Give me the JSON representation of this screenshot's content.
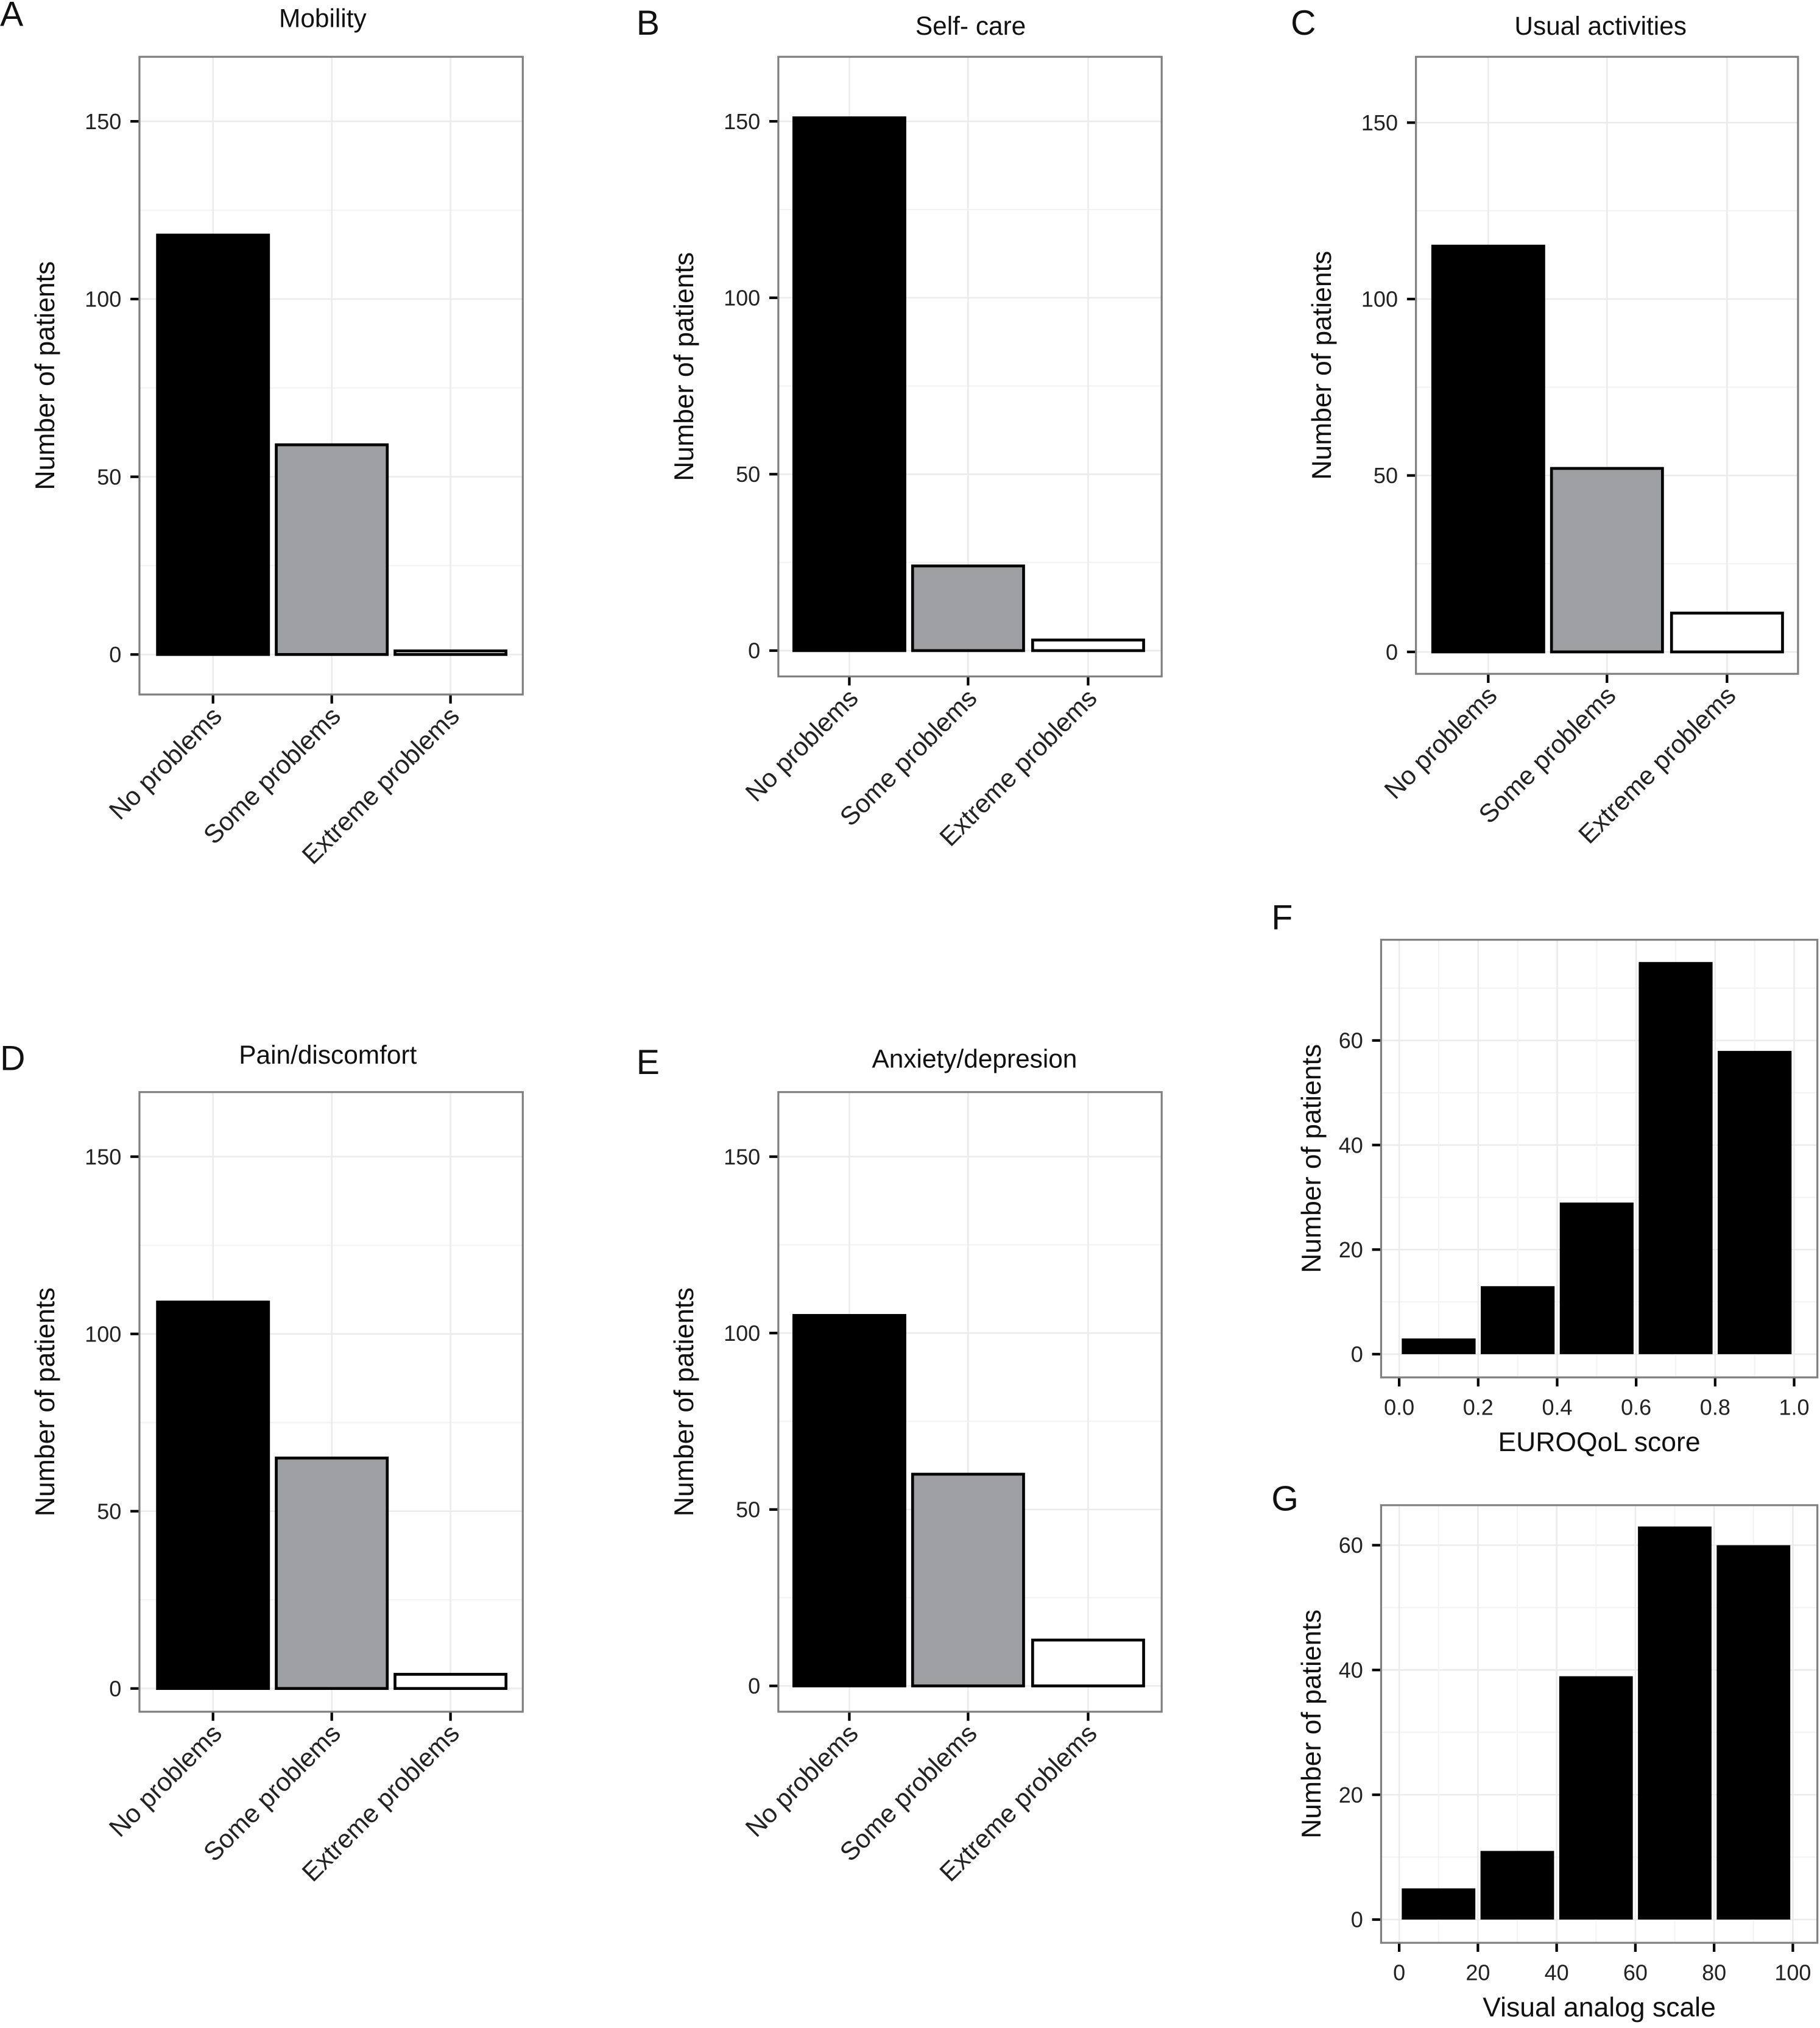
{
  "colors": {
    "no_problems": "#000000",
    "some_problems": "#9d9fa2",
    "extreme_problems": "#ffffff",
    "bar_stroke": "#000000",
    "grid": "#ebebeb",
    "panel_border": "#7f7f7f"
  },
  "chart_data": [
    {
      "id": "A",
      "letter": "A",
      "type": "bar",
      "title": "Mobility",
      "ylabel": "Number of patients",
      "xlabel": "",
      "categories": [
        "No problems",
        "Some problems",
        "Extreme problems"
      ],
      "values": [
        118,
        59,
        1
      ],
      "yticks": [
        0,
        50,
        100,
        150
      ],
      "grid": true
    },
    {
      "id": "B",
      "letter": "B",
      "type": "bar",
      "title": "Self- care",
      "ylabel": "Number of patients",
      "xlabel": "",
      "categories": [
        "No problems",
        "Some problems",
        "Extreme problems"
      ],
      "values": [
        151,
        24,
        3
      ],
      "yticks": [
        0,
        50,
        100,
        150
      ],
      "grid": true
    },
    {
      "id": "C",
      "letter": "C",
      "type": "bar",
      "title": "Usual activities",
      "ylabel": "Number of patients",
      "xlabel": "",
      "categories": [
        "No problems",
        "Some problems",
        "Extreme problems"
      ],
      "values": [
        115,
        52,
        11
      ],
      "yticks": [
        0,
        50,
        100,
        150
      ],
      "grid": true
    },
    {
      "id": "D",
      "letter": "D",
      "type": "bar",
      "title": "Pain/discomfort",
      "ylabel": "Number of patients",
      "xlabel": "",
      "categories": [
        "No problems",
        "Some problems",
        "Extreme problems"
      ],
      "values": [
        109,
        65,
        4
      ],
      "yticks": [
        0,
        50,
        100,
        150
      ],
      "grid": true
    },
    {
      "id": "E",
      "letter": "E",
      "type": "bar",
      "title": "Anxiety/depresion",
      "ylabel": "Number of patients",
      "xlabel": "",
      "categories": [
        "No problems",
        "Some problems",
        "Extreme problems"
      ],
      "values": [
        105,
        60,
        13
      ],
      "yticks": [
        0,
        50,
        100,
        150
      ],
      "grid": true
    },
    {
      "id": "F",
      "letter": "F",
      "type": "bar",
      "title": "",
      "ylabel": "Number of patients",
      "xlabel": "EUROQoL score",
      "bins": [
        [
          0.0,
          0.2
        ],
        [
          0.2,
          0.4
        ],
        [
          0.4,
          0.6
        ],
        [
          0.6,
          0.8
        ],
        [
          0.8,
          1.0
        ]
      ],
      "values": [
        3,
        13,
        29,
        75,
        58
      ],
      "xticks": [
        "0.0",
        "0.2",
        "0.4",
        "0.6",
        "0.8",
        "1.0"
      ],
      "yticks": [
        0,
        20,
        40,
        60
      ],
      "xlim": [
        0,
        1
      ],
      "grid": true
    },
    {
      "id": "G",
      "letter": "G",
      "type": "bar",
      "title": "",
      "ylabel": "Number of patients",
      "xlabel": "Visual analog scale",
      "bins": [
        [
          0,
          20
        ],
        [
          20,
          40
        ],
        [
          40,
          60
        ],
        [
          60,
          80
        ],
        [
          80,
          100
        ]
      ],
      "values": [
        5,
        11,
        39,
        63,
        60
      ],
      "xticks": [
        "0",
        "20",
        "40",
        "60",
        "80",
        "100"
      ],
      "yticks": [
        0,
        20,
        40,
        60
      ],
      "xlim": [
        0,
        100
      ],
      "grid": true
    }
  ]
}
